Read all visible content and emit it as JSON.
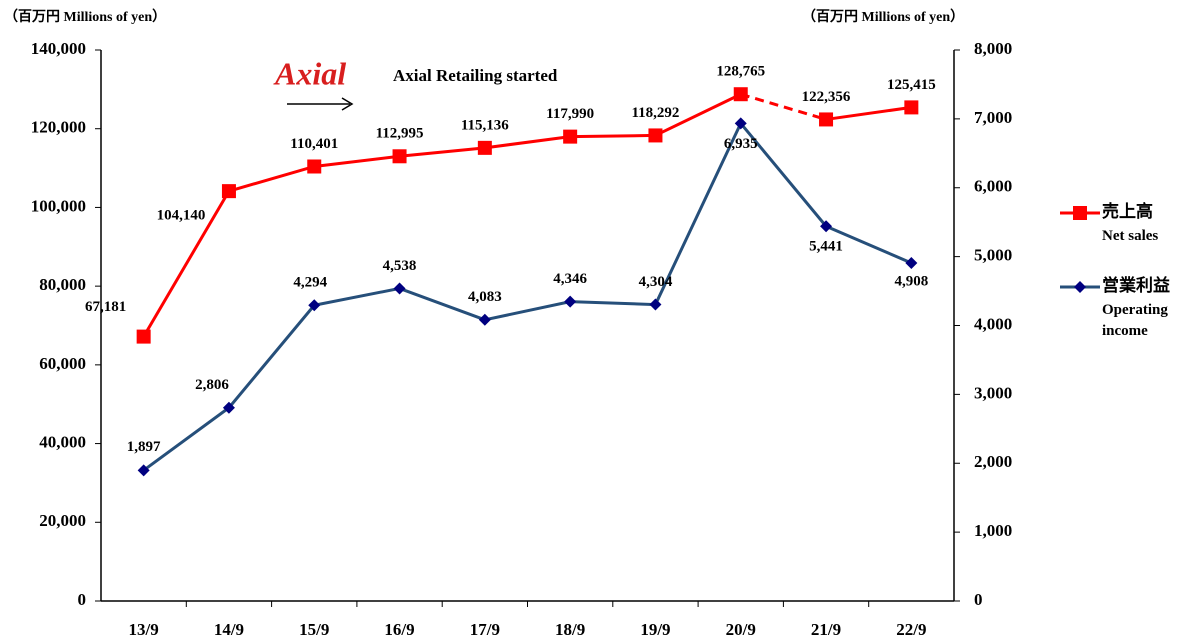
{
  "chart_data": {
    "type": "line",
    "y_label": "（百万円  Millions of yen）",
    "y2_label": "（百万円 Millions of yen）",
    "annotation_logo": "Axial",
    "annotation": "Axial Retailing started",
    "categories": [
      "13/9",
      "14/9",
      "15/9",
      "16/9",
      "17/9",
      "18/9",
      "19/9",
      "20/9",
      "21/9",
      "22/9"
    ],
    "ylim": [
      0,
      140000
    ],
    "yticks": [
      0,
      {
        "value": 20000,
        "label": "20,000"
      },
      {
        "value": 40000,
        "label": "40,000"
      },
      {
        "value": 60000,
        "label": "60,000"
      },
      {
        "value": 80000,
        "label": "80,000"
      },
      {
        "value": 100000,
        "label": "100,000"
      },
      {
        "value": 120000,
        "label": "120,000"
      },
      {
        "value": 140000,
        "label": "140,000"
      }
    ],
    "y2lim": [
      0,
      8000
    ],
    "y2ticks": [
      0,
      {
        "value": 1000,
        "label": "1,000"
      },
      {
        "value": 2000,
        "label": "2,000"
      },
      {
        "value": 3000,
        "label": "3,000"
      },
      {
        "value": 4000,
        "label": "4,000"
      },
      {
        "value": 5000,
        "label": "5,000"
      },
      {
        "value": 6000,
        "label": "6,000"
      },
      {
        "value": 7000,
        "label": "7,000"
      },
      {
        "value": 8000,
        "label": "8,000"
      }
    ],
    "grid": false,
    "legend": "right",
    "series": [
      {
        "name": "売上高",
        "name_en": "Net sales",
        "color": "#ff0000",
        "marker": "square",
        "axis": "y",
        "dashed_segments": [
          7
        ],
        "values": [
          67181,
          104140,
          110401,
          112995,
          115136,
          117990,
          118292,
          128765,
          122356,
          125415
        ],
        "value_labels": [
          "67,181",
          "104,140",
          "110,401",
          "112,995",
          "115,136",
          "117,990",
          "118,292",
          "128,765",
          "122,356",
          "125,415"
        ]
      },
      {
        "name": "営業利益",
        "name_en": "Operating income",
        "color": "#264f7a",
        "marker": "diamond",
        "axis": "y2",
        "values": [
          1897,
          2806,
          4294,
          4538,
          4083,
          4346,
          4304,
          6935,
          5441,
          4908
        ],
        "value_labels": [
          "1,897",
          "2,806",
          "4,294",
          "4,538",
          "4,083",
          "4,346",
          "4,304",
          "6,935",
          "5,441",
          "4,908"
        ]
      }
    ]
  }
}
